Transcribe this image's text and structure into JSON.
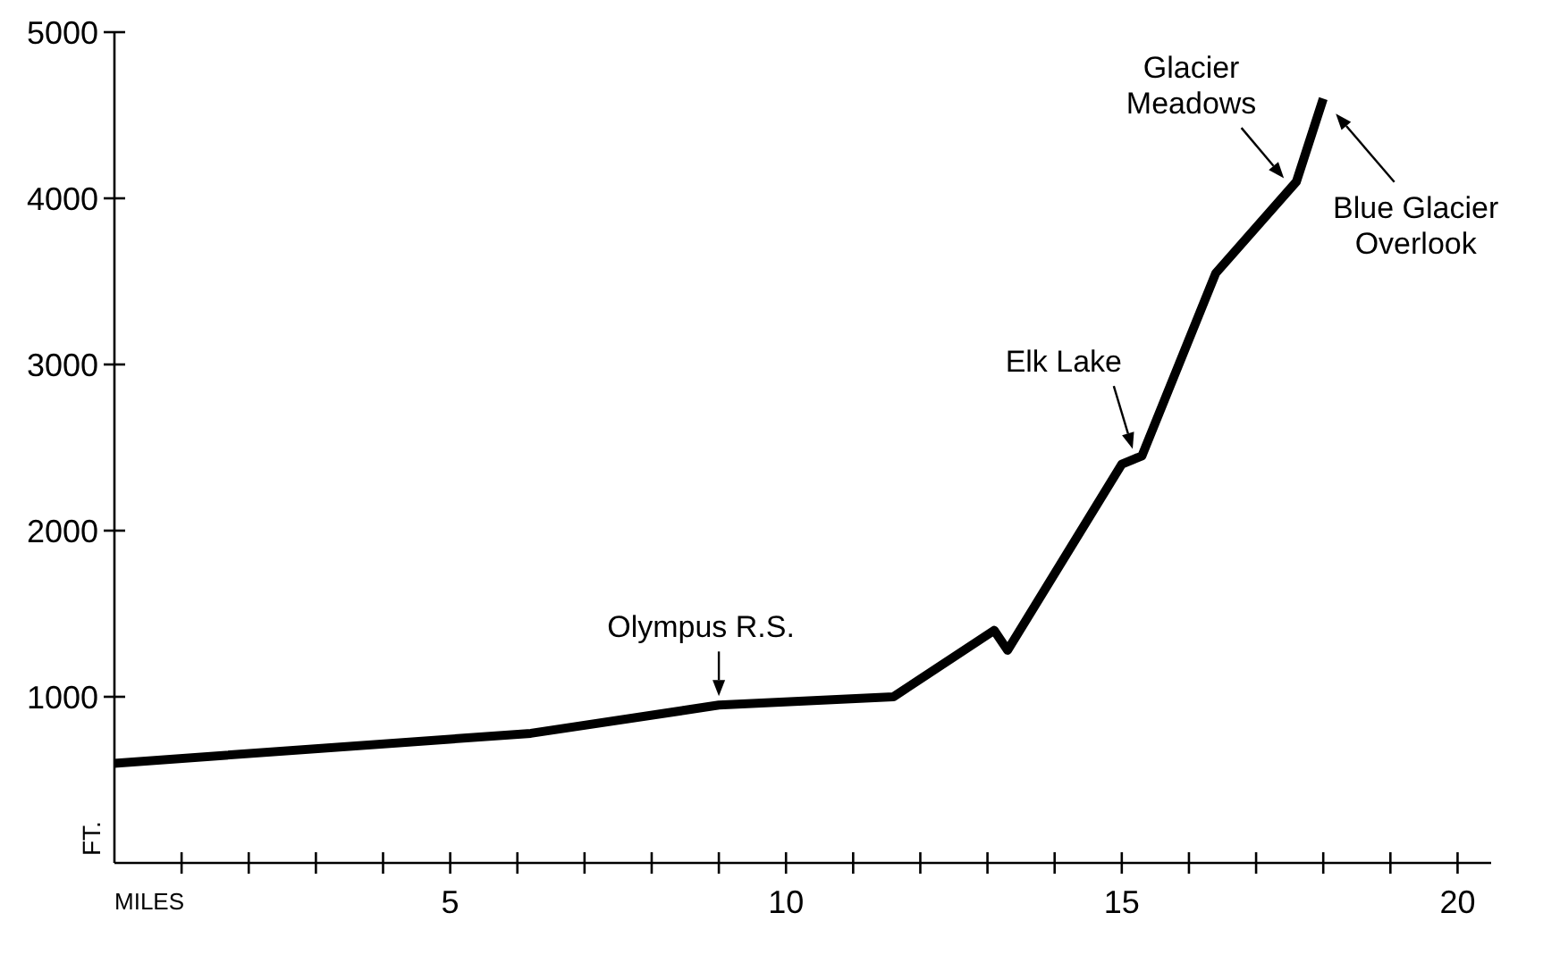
{
  "chart_data": {
    "type": "line",
    "xlabel": "MILES",
    "ylabel": "FT.",
    "x": [
      0,
      6.2,
      9,
      11.6,
      13.1,
      13.3,
      15.0,
      15.3,
      16.4,
      17.6,
      18.0
    ],
    "series": [
      {
        "color": "#000000",
        "values": [
          600,
          780,
          950,
          1000,
          1400,
          1280,
          2400,
          2450,
          3550,
          4100,
          4600
        ]
      }
    ],
    "xlim": [
      0,
      20.5
    ],
    "ylim": [
      0,
      5000
    ],
    "xticks": [
      {
        "value": 1,
        "label": null
      },
      {
        "value": 2,
        "label": null
      },
      {
        "value": 3,
        "label": null
      },
      {
        "value": 4,
        "label": null
      },
      5,
      {
        "value": 6,
        "label": null
      },
      {
        "value": 7,
        "label": null
      },
      {
        "value": 8,
        "label": null
      },
      {
        "value": 9,
        "label": null
      },
      10,
      {
        "value": 11,
        "label": null
      },
      {
        "value": 12,
        "label": null
      },
      {
        "value": 13,
        "label": null
      },
      {
        "value": 14,
        "label": null
      },
      15,
      {
        "value": 16,
        "label": null
      },
      {
        "value": 17,
        "label": null
      },
      {
        "value": 18,
        "label": null
      },
      {
        "value": 19,
        "label": null
      },
      20
    ],
    "yticks": [
      1000,
      2000,
      3000,
      4000,
      5000
    ],
    "grid": false,
    "marker": "none",
    "line_style": "solid",
    "annotations": [
      {
        "text": "Olympus R.S.",
        "x": 9,
        "y": 950
      },
      {
        "text": "Elk Lake",
        "x": 15.2,
        "y": 2440
      },
      {
        "text": "Glacier Meadows",
        "x": 17.5,
        "y": 4080
      },
      {
        "text": "Blue Glacier Overlook",
        "x": 18.1,
        "y": 4550
      }
    ]
  }
}
